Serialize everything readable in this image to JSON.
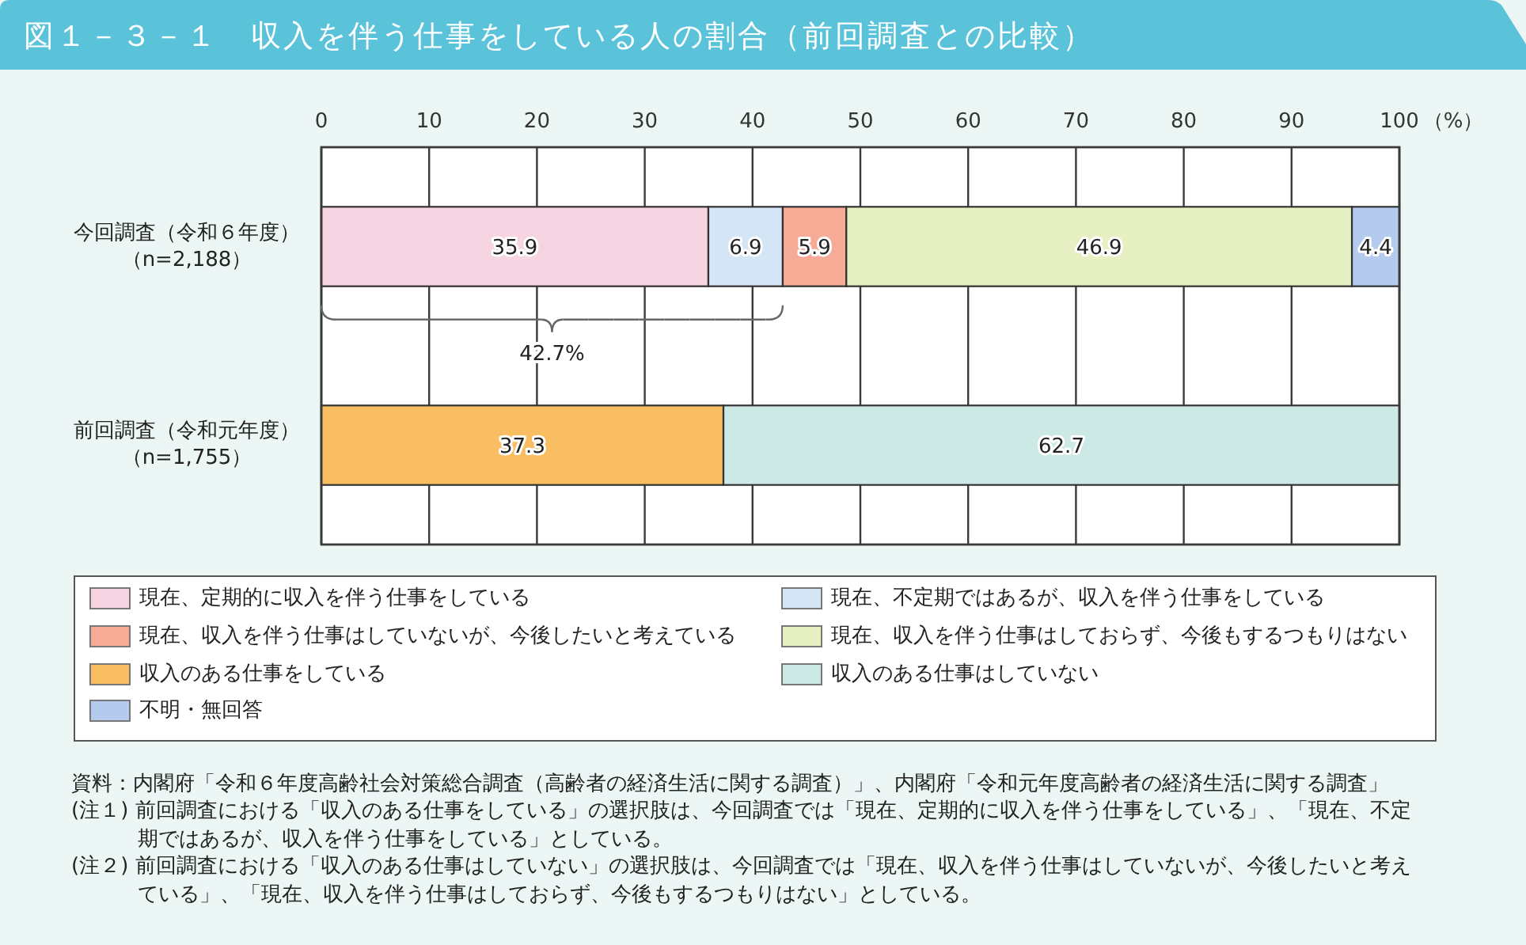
{
  "chart_data": {
    "type": "bar",
    "orientation": "horizontal",
    "stacked": true,
    "title": "図１－３－１　収入を伴う仕事をしている人の割合（前回調査との比較）",
    "xlabel": "（%）",
    "categories": [
      "今回調査（令和６年度）（n=2,188）",
      "前回調査（令和元年度）（n=1,755）"
    ],
    "series": [
      {
        "name": "現在、定期的に収入を伴う仕事をしている",
        "color": "#f6d4e2",
        "values": [
          35.9,
          null
        ]
      },
      {
        "name": "現在、不定期ではあるが、収入を伴う仕事をしている",
        "color": "#d4e5f6",
        "values": [
          6.9,
          null
        ]
      },
      {
        "name": "現在、収入を伴う仕事はしていないが、今後したいと考えている",
        "color": "#f5ab96",
        "values": [
          5.9,
          null
        ]
      },
      {
        "name": "現在、収入を伴う仕事はしておらず、今後もするつもりはない",
        "color": "#e7f0c2",
        "values": [
          46.9,
          null
        ]
      },
      {
        "name": "収入のある仕事をしている",
        "color": "#f9bd62",
        "values": [
          null,
          37.3
        ]
      },
      {
        "name": "収入のある仕事はしていない",
        "color": "#cde9e6",
        "values": [
          null,
          62.7
        ]
      },
      {
        "name": "不明・無回答",
        "color": "#b4cbee",
        "values": [
          4.4,
          null
        ]
      }
    ],
    "xlim": [
      0,
      100
    ],
    "xticks": [
      0,
      10,
      20,
      30,
      40,
      50,
      60,
      70,
      80,
      90,
      100
    ],
    "grid": "x",
    "legend": "bottom",
    "data_labels": true,
    "annotations": [
      "42.7%",
      "資料：内閣府「令和６年度高齢社会対策総合調査（高齢者の経済生活に関する調査）」、内閣府「令和元年度高齢者の経済生活に関する調査」",
      "(注１) 前回調査における「収入のある仕事をしている」の選択肢は、今回調査では「現在、定期的に収入を伴う仕事をしている」、「現在、不定期ではあるが、収入を伴う仕事をしている」としている。",
      "(注２) 前回調査における「収入のある仕事はしていない」の選択肢は、今回調査では「現在、収入を伴う仕事はしていないが、今後したいと考えている」、「現在、収入を伴う仕事はしておらず、今後もするつもりはない」としている。"
    ]
  }
}
